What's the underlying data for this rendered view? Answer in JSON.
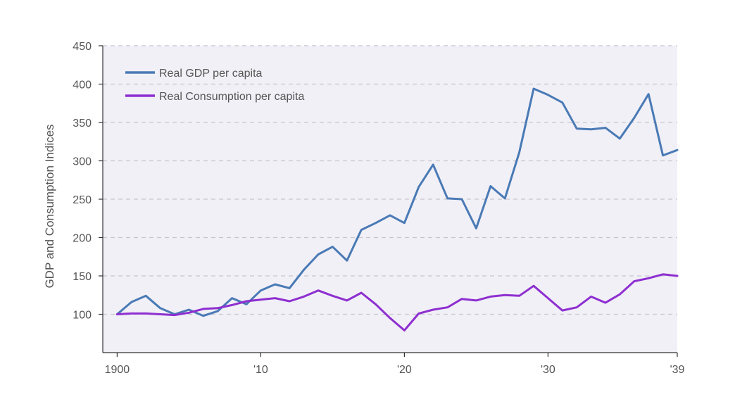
{
  "chart_data": {
    "type": "line",
    "title": "",
    "xlabel": "",
    "ylabel": "GDP and Consumption Indices",
    "xlim": [
      1899,
      1939
    ],
    "ylim": [
      50,
      450
    ],
    "x_ticks": [
      1900,
      1910,
      1920,
      1930,
      1939
    ],
    "x_tick_labels": [
      "1900",
      "'10",
      "'20",
      "'30",
      "'39"
    ],
    "y_ticks": [
      100,
      150,
      200,
      250,
      300,
      350,
      400,
      450
    ],
    "y_tick_labels": [
      "100",
      "150",
      "200",
      "250",
      "300",
      "350",
      "400",
      "450"
    ],
    "grid": "horizontal dashed",
    "legend_position": "top-left",
    "background_color": "#f1f0f7",
    "x": [
      1900,
      1901,
      1902,
      1903,
      1904,
      1905,
      1906,
      1907,
      1908,
      1909,
      1910,
      1911,
      1912,
      1913,
      1914,
      1915,
      1916,
      1917,
      1918,
      1919,
      1920,
      1921,
      1922,
      1923,
      1924,
      1925,
      1926,
      1927,
      1928,
      1929,
      1930,
      1931,
      1932,
      1933,
      1934,
      1935,
      1936,
      1937,
      1938,
      1939
    ],
    "series": [
      {
        "name": "Real GDP per capita",
        "color": "#4a7ab5",
        "values": [
          100,
          116,
          124,
          108,
          100,
          106,
          98,
          104,
          121,
          113,
          131,
          139,
          134,
          158,
          178,
          188,
          170,
          210,
          219,
          229,
          219,
          266,
          295,
          251,
          250,
          212,
          267,
          251,
          311,
          394,
          386,
          376,
          342,
          341,
          343,
          329,
          356,
          387,
          307,
          314
        ]
      },
      {
        "name": "Real Consumption per capita",
        "color": "#8e2fd0",
        "values": [
          100,
          101,
          101,
          100,
          99,
          102,
          107,
          108,
          112,
          117,
          119,
          121,
          117,
          123,
          131,
          124,
          118,
          128,
          113,
          95,
          79,
          101,
          106,
          109,
          120,
          118,
          123,
          125,
          124,
          137,
          121,
          105,
          109,
          123,
          115,
          126,
          143,
          147,
          152,
          150
        ]
      }
    ]
  }
}
